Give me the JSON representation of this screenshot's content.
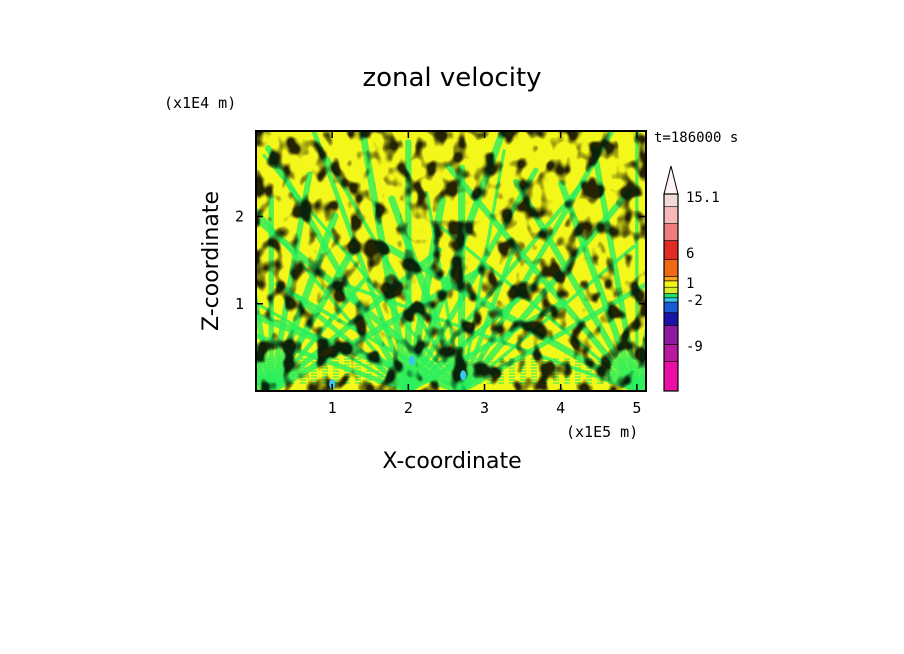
{
  "chart_data": {
    "type": "heatmap",
    "title": "zonal velocity",
    "xlabel": "X-coordinate",
    "ylabel": "Z-coordinate",
    "x_scale_label": "(x1E5 m)",
    "y_scale_label": "(x1E4 m)",
    "time_label": "t=186000 s",
    "xlim": [
      0,
      5.12
    ],
    "ylim": [
      0,
      2.98
    ],
    "x_ticks": [
      1,
      2,
      3,
      4,
      5
    ],
    "x_tick_labels": [
      "1",
      "2",
      "3",
      "4",
      "5"
    ],
    "y_ticks": [
      1,
      2
    ],
    "y_tick_labels": [
      "1",
      "2"
    ],
    "colorbar": {
      "levels": [
        {
          "color": "#ec0fa3"
        },
        {
          "color": "#b8199e"
        },
        {
          "color": "#8c1aa0"
        },
        {
          "color": "#1a12a8"
        },
        {
          "color": "#1b5ad6"
        },
        {
          "color": "#33c8ee"
        },
        {
          "color": "#1ae068"
        },
        {
          "color": "#d8ee28"
        },
        {
          "color": "#f5f518"
        },
        {
          "color": "#f7a51c"
        },
        {
          "color": "#ef6a12"
        },
        {
          "color": "#e12b25"
        },
        {
          "color": "#f07d7d"
        },
        {
          "color": "#f6b8b8"
        },
        {
          "color": "#f1dada"
        }
      ],
      "labels": [
        "15.1",
        "6",
        "1",
        "-2",
        "-9"
      ],
      "extend_top": true
    },
    "field": {
      "dominant_colors": [
        "#f4f71a",
        "#2af05e"
      ],
      "minor_colors": [
        "#36c8f0"
      ],
      "pattern": "alternating bands radiating upward from surface sources near x=0.2, 2.0, 2.7 and 5.0"
    }
  }
}
